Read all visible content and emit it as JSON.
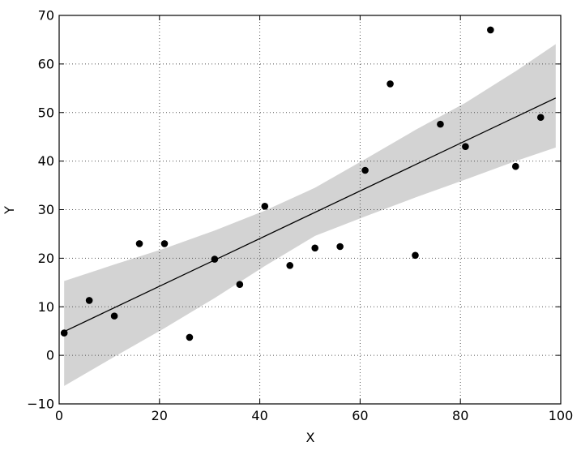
{
  "chart_data": {
    "type": "scatter",
    "title": "",
    "xlabel": "X",
    "ylabel": "Y",
    "xlim": [
      0,
      100
    ],
    "ylim": [
      -10,
      70
    ],
    "xticks": [
      0,
      20,
      40,
      60,
      80,
      100
    ],
    "yticks": [
      -10,
      0,
      10,
      20,
      30,
      40,
      50,
      60,
      70
    ],
    "xtick_labels": [
      "0",
      "20",
      "40",
      "60",
      "80",
      "100"
    ],
    "ytick_labels": [
      "−10",
      "0",
      "10",
      "20",
      "30",
      "40",
      "50",
      "60",
      "70"
    ],
    "grid": true,
    "legend": "none",
    "colors": {
      "points": "#000000",
      "fit_line": "#000000",
      "band": "#d3d3d3",
      "grid": "#555555"
    },
    "points": {
      "x": [
        1,
        6,
        11,
        16,
        21,
        26,
        31,
        36,
        41,
        46,
        51,
        56,
        61,
        66,
        71,
        76,
        81,
        86,
        91,
        96
      ],
      "y": [
        4.6,
        11.3,
        8.1,
        23.0,
        23.0,
        3.7,
        19.8,
        14.6,
        30.7,
        18.5,
        22.1,
        22.4,
        38.1,
        55.9,
        20.6,
        47.6,
        43.0,
        67.0,
        38.9,
        49.0
      ]
    },
    "fit_line": {
      "x": [
        1,
        99
      ],
      "y": [
        4.9,
        53.0
      ]
    },
    "confidence_band": {
      "x": [
        1,
        11,
        21,
        31,
        41,
        51,
        61,
        71,
        81,
        91,
        99
      ],
      "lower": [
        -6.3,
        -0.3,
        5.6,
        11.8,
        18.4,
        24.6,
        28.6,
        32.5,
        36.2,
        40.0,
        42.8
      ],
      "upper": [
        15.3,
        18.7,
        22.0,
        25.7,
        29.8,
        34.5,
        40.4,
        46.4,
        52.0,
        58.5,
        64.1
      ]
    }
  }
}
